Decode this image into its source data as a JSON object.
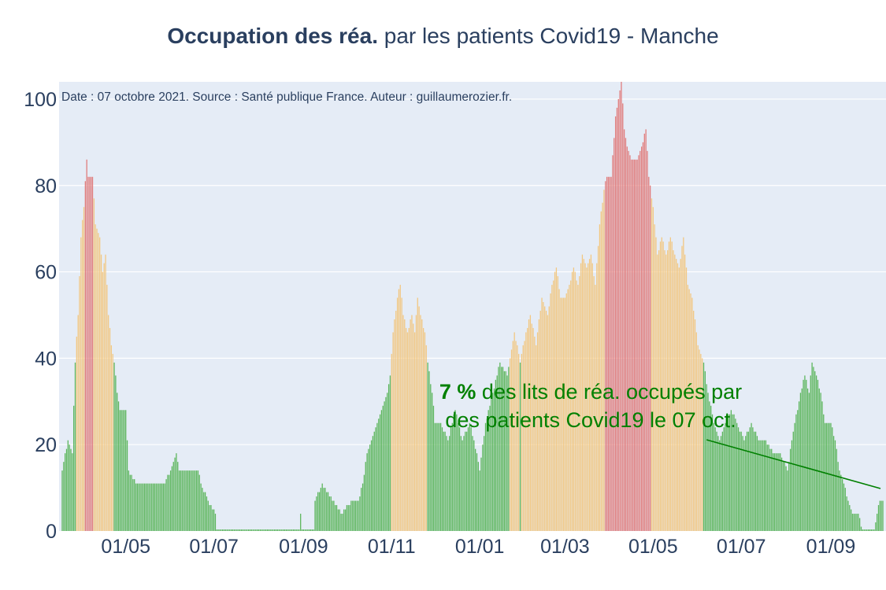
{
  "title": {
    "bold": "Occupation des réa.",
    "rest": " par les patients Covid19 - Manche"
  },
  "source_note": "Date : 07 octobre 2021. Source : Santé publique France. Auteur : guillaumerozier.fr.",
  "annotation": {
    "value": "7  %",
    "line1": " des lits de réa. occupés par",
    "line2": "des patients Covid19 le 07 oct."
  },
  "colors": {
    "background": "#E5ECF6",
    "green": "#5bb55b",
    "orange": "#f2c781",
    "red": "#e07b7b",
    "annotation": "#008000",
    "text": "#2a3f5f"
  },
  "chart_data": {
    "type": "bar",
    "title": "Occupation des réa. par les patients Covid19 - Manche",
    "xlabel": "",
    "ylabel": "",
    "ylim": [
      0,
      104
    ],
    "x_range": [
      "2020-03-18",
      "2021-10-07"
    ],
    "y_ticks": [
      0,
      20,
      40,
      60,
      80,
      100
    ],
    "x_ticks": [
      {
        "date": "2020-05-01",
        "label": "01/05"
      },
      {
        "date": "2020-07-01",
        "label": "01/07"
      },
      {
        "date": "2020-09-01",
        "label": "01/09"
      },
      {
        "date": "2020-11-01",
        "label": "01/11"
      },
      {
        "date": "2021-01-01",
        "label": "01/01"
      },
      {
        "date": "2021-03-01",
        "label": "01/03"
      },
      {
        "date": "2021-05-01",
        "label": "01/05"
      },
      {
        "date": "2021-07-01",
        "label": "01/07"
      },
      {
        "date": "2021-09-01",
        "label": "01/09"
      }
    ],
    "color_thresholds": {
      "orange_from": 40,
      "red_from": 80
    },
    "series": [
      {
        "values_by_date": [
          [
            "2020-03-18",
            14
          ],
          [
            "2020-03-22",
            21
          ],
          [
            "2020-03-25",
            18
          ],
          [
            "2020-03-27",
            39
          ],
          [
            "2020-03-29",
            50
          ],
          [
            "2020-03-31",
            68
          ],
          [
            "2020-04-02",
            75
          ],
          [
            "2020-04-04",
            86
          ],
          [
            "2020-04-05",
            82
          ],
          [
            "2020-04-08",
            82
          ],
          [
            "2020-04-10",
            71
          ],
          [
            "2020-04-13",
            68
          ],
          [
            "2020-04-15",
            60
          ],
          [
            "2020-04-17",
            64
          ],
          [
            "2020-04-19",
            50
          ],
          [
            "2020-04-21",
            43
          ],
          [
            "2020-04-23",
            39
          ],
          [
            "2020-04-25",
            32
          ],
          [
            "2020-04-27",
            28
          ],
          [
            "2020-05-01",
            28
          ],
          [
            "2020-05-03",
            14
          ],
          [
            "2020-05-08",
            11
          ],
          [
            "2020-05-28",
            11
          ],
          [
            "2020-06-01",
            14
          ],
          [
            "2020-06-05",
            18
          ],
          [
            "2020-06-07",
            14
          ],
          [
            "2020-06-20",
            14
          ],
          [
            "2020-06-22",
            11
          ],
          [
            "2020-06-27",
            7
          ],
          [
            "2020-07-02",
            4
          ],
          [
            "2020-07-03",
            0
          ],
          [
            "2020-08-29",
            0
          ],
          [
            "2020-08-30",
            4
          ],
          [
            "2020-08-31",
            0
          ],
          [
            "2020-09-08",
            0
          ],
          [
            "2020-09-09",
            7
          ],
          [
            "2020-09-14",
            11
          ],
          [
            "2020-09-21",
            7
          ],
          [
            "2020-09-27",
            4
          ],
          [
            "2020-10-05",
            7
          ],
          [
            "2020-10-09",
            7
          ],
          [
            "2020-10-12",
            11
          ],
          [
            "2020-10-15",
            18
          ],
          [
            "2020-10-18",
            21
          ],
          [
            "2020-10-22",
            25
          ],
          [
            "2020-10-25",
            28
          ],
          [
            "2020-10-29",
            32
          ],
          [
            "2020-10-31",
            36
          ],
          [
            "2020-11-02",
            46
          ],
          [
            "2020-11-05",
            54
          ],
          [
            "2020-11-07",
            57
          ],
          [
            "2020-11-09",
            50
          ],
          [
            "2020-11-12",
            46
          ],
          [
            "2020-11-15",
            50
          ],
          [
            "2020-11-17",
            46
          ],
          [
            "2020-11-19",
            54
          ],
          [
            "2020-11-21",
            50
          ],
          [
            "2020-11-24",
            46
          ],
          [
            "2020-11-26",
            39
          ],
          [
            "2020-11-29",
            32
          ],
          [
            "2020-12-01",
            25
          ],
          [
            "2020-12-05",
            25
          ],
          [
            "2020-12-10",
            21
          ],
          [
            "2020-12-15",
            28
          ],
          [
            "2020-12-20",
            21
          ],
          [
            "2020-12-25",
            25
          ],
          [
            "2020-12-30",
            18
          ],
          [
            "2021-01-01",
            14
          ],
          [
            "2021-01-05",
            25
          ],
          [
            "2021-01-10",
            32
          ],
          [
            "2021-01-15",
            39
          ],
          [
            "2021-01-20",
            36
          ],
          [
            "2021-01-25",
            46
          ],
          [
            "2021-01-29",
            39
          ],
          [
            "2021-02-02",
            46
          ],
          [
            "2021-02-05",
            50
          ],
          [
            "2021-02-09",
            43
          ],
          [
            "2021-02-13",
            54
          ],
          [
            "2021-02-17",
            50
          ],
          [
            "2021-02-20",
            57
          ],
          [
            "2021-02-23",
            61
          ],
          [
            "2021-02-26",
            54
          ],
          [
            "2021-03-01",
            54
          ],
          [
            "2021-03-04",
            57
          ],
          [
            "2021-03-07",
            61
          ],
          [
            "2021-03-10",
            57
          ],
          [
            "2021-03-13",
            64
          ],
          [
            "2021-03-16",
            61
          ],
          [
            "2021-03-19",
            64
          ],
          [
            "2021-03-22",
            57
          ],
          [
            "2021-03-25",
            71
          ],
          [
            "2021-03-28",
            79
          ],
          [
            "2021-03-30",
            82
          ],
          [
            "2021-04-02",
            82
          ],
          [
            "2021-04-05",
            96
          ],
          [
            "2021-04-07",
            100
          ],
          [
            "2021-04-09",
            104
          ],
          [
            "2021-04-11",
            93
          ],
          [
            "2021-04-13",
            89
          ],
          [
            "2021-04-16",
            86
          ],
          [
            "2021-04-20",
            86
          ],
          [
            "2021-04-23",
            89
          ],
          [
            "2021-04-26",
            93
          ],
          [
            "2021-04-28",
            82
          ],
          [
            "2021-05-01",
            75
          ],
          [
            "2021-05-04",
            64
          ],
          [
            "2021-05-07",
            68
          ],
          [
            "2021-05-10",
            64
          ],
          [
            "2021-05-13",
            68
          ],
          [
            "2021-05-16",
            64
          ],
          [
            "2021-05-19",
            61
          ],
          [
            "2021-05-22",
            68
          ],
          [
            "2021-05-25",
            57
          ],
          [
            "2021-05-28",
            54
          ],
          [
            "2021-06-01",
            43
          ],
          [
            "2021-06-05",
            39
          ],
          [
            "2021-06-08",
            32
          ],
          [
            "2021-06-12",
            25
          ],
          [
            "2021-06-16",
            21
          ],
          [
            "2021-06-20",
            25
          ],
          [
            "2021-06-24",
            28
          ],
          [
            "2021-06-28",
            25
          ],
          [
            "2021-07-03",
            21
          ],
          [
            "2021-07-08",
            25
          ],
          [
            "2021-07-13",
            21
          ],
          [
            "2021-07-18",
            21
          ],
          [
            "2021-07-23",
            18
          ],
          [
            "2021-07-28",
            18
          ],
          [
            "2021-08-02",
            14
          ],
          [
            "2021-08-05",
            21
          ],
          [
            "2021-08-07",
            25
          ],
          [
            "2021-08-09",
            28
          ],
          [
            "2021-08-11",
            32
          ],
          [
            "2021-08-14",
            36
          ],
          [
            "2021-08-17",
            32
          ],
          [
            "2021-08-19",
            39
          ],
          [
            "2021-08-22",
            36
          ],
          [
            "2021-08-25",
            32
          ],
          [
            "2021-08-28",
            25
          ],
          [
            "2021-09-01",
            25
          ],
          [
            "2021-09-04",
            21
          ],
          [
            "2021-09-07",
            14
          ],
          [
            "2021-09-10",
            11
          ],
          [
            "2021-09-13",
            7
          ],
          [
            "2021-09-16",
            4
          ],
          [
            "2021-09-20",
            4
          ],
          [
            "2021-09-23",
            0
          ],
          [
            "2021-10-01",
            0
          ],
          [
            "2021-10-03",
            4
          ],
          [
            "2021-10-05",
            7
          ],
          [
            "2021-10-07",
            7
          ]
        ]
      }
    ]
  }
}
